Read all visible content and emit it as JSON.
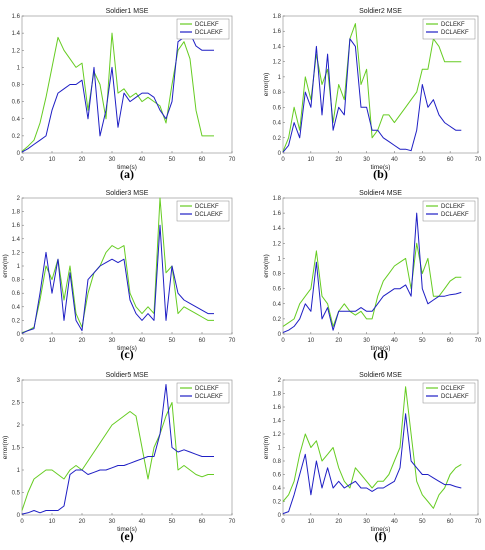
{
  "colors": {
    "series1": "#66cc22",
    "series2": "#1f1fc4",
    "axis": "#000000",
    "frame": "#999999"
  },
  "chart_data": [
    {
      "type": "line",
      "title": "Soldier1 MSE",
      "xlabel": "time(s)",
      "ylabel": "",
      "xlim": [
        0,
        70
      ],
      "ylim": [
        0,
        1.6
      ],
      "xticks": [
        "0",
        "10",
        "20",
        "30",
        "40",
        "50",
        "60",
        "70"
      ],
      "yticks": [
        "0",
        "0.2",
        "0.4",
        "0.6",
        "0.8",
        "1",
        "1.2",
        "1.4",
        "1.6"
      ],
      "legend": "top-right",
      "caption": "(a)",
      "series": [
        {
          "name": "DCLEKF",
          "x": [
            0,
            2,
            4,
            6,
            8,
            10,
            12,
            14,
            16,
            18,
            20,
            22,
            24,
            26,
            28,
            30,
            32,
            34,
            36,
            38,
            40,
            42,
            44,
            46,
            48,
            50,
            52,
            54,
            56,
            58,
            60,
            62,
            64
          ],
          "y": [
            0.02,
            0.08,
            0.15,
            0.35,
            0.65,
            1.0,
            1.35,
            1.2,
            1.1,
            1.0,
            1.05,
            0.5,
            0.95,
            0.8,
            0.4,
            1.4,
            0.7,
            0.75,
            0.65,
            0.7,
            0.6,
            0.65,
            0.6,
            0.55,
            0.35,
            0.8,
            1.2,
            1.3,
            1.1,
            0.5,
            0.2,
            0.2,
            0.2
          ]
        },
        {
          "name": "DCLAEKF",
          "x": [
            0,
            2,
            4,
            6,
            8,
            10,
            12,
            14,
            16,
            18,
            20,
            22,
            24,
            26,
            28,
            30,
            32,
            34,
            36,
            38,
            40,
            42,
            44,
            46,
            48,
            50,
            52,
            54,
            56,
            58,
            60,
            62,
            64
          ],
          "y": [
            0.01,
            0.05,
            0.1,
            0.15,
            0.2,
            0.5,
            0.7,
            0.75,
            0.8,
            0.8,
            0.85,
            0.4,
            1.0,
            0.2,
            0.5,
            1.0,
            0.3,
            0.7,
            0.6,
            0.65,
            0.7,
            0.7,
            0.65,
            0.5,
            0.4,
            0.6,
            1.3,
            1.35,
            1.4,
            1.25,
            1.2,
            1.2,
            1.2
          ]
        }
      ]
    },
    {
      "type": "line",
      "title": "Soldier2 MSE",
      "xlabel": "time(s)",
      "ylabel": "error(m)",
      "xlim": [
        0,
        70
      ],
      "ylim": [
        0,
        1.8
      ],
      "xticks": [
        "0",
        "10",
        "20",
        "30",
        "40",
        "50",
        "60",
        "70"
      ],
      "yticks": [
        "0",
        "0.2",
        "0.4",
        "0.6",
        "0.8",
        "1",
        "1.2",
        "1.4",
        "1.6",
        "1.8"
      ],
      "legend": "top-right",
      "caption": "(b)",
      "series": [
        {
          "name": "DCLEKF",
          "x": [
            0,
            2,
            4,
            6,
            8,
            10,
            12,
            14,
            16,
            18,
            20,
            22,
            24,
            26,
            28,
            30,
            32,
            34,
            36,
            38,
            40,
            42,
            44,
            46,
            48,
            50,
            52,
            54,
            56,
            58,
            60,
            62,
            64
          ],
          "y": [
            0.02,
            0.2,
            0.6,
            0.3,
            1.0,
            0.7,
            1.3,
            0.9,
            1.1,
            0.4,
            0.9,
            0.7,
            1.5,
            1.7,
            0.9,
            1.1,
            0.2,
            0.3,
            0.5,
            0.5,
            0.4,
            0.5,
            0.6,
            0.7,
            0.8,
            1.1,
            1.1,
            1.5,
            1.4,
            1.2,
            1.2,
            1.2,
            1.2
          ]
        },
        {
          "name": "DCLAEKF",
          "x": [
            0,
            2,
            4,
            6,
            8,
            10,
            12,
            14,
            16,
            18,
            20,
            22,
            24,
            26,
            28,
            30,
            32,
            34,
            36,
            38,
            40,
            42,
            44,
            46,
            48,
            50,
            52,
            54,
            56,
            58,
            60,
            62,
            64
          ],
          "y": [
            0.01,
            0.1,
            0.4,
            0.2,
            0.8,
            0.6,
            1.4,
            0.5,
            1.3,
            0.3,
            0.6,
            0.5,
            1.5,
            1.4,
            0.6,
            0.6,
            0.3,
            0.3,
            0.2,
            0.15,
            0.1,
            0.05,
            0.05,
            0.03,
            0.3,
            0.9,
            0.6,
            0.7,
            0.5,
            0.4,
            0.35,
            0.3,
            0.3
          ]
        }
      ]
    },
    {
      "type": "line",
      "title": "Soldier3 MSE",
      "xlabel": "time(s)",
      "ylabel": "error(m)",
      "xlim": [
        0,
        70
      ],
      "ylim": [
        0,
        2
      ],
      "xticks": [
        "0",
        "10",
        "20",
        "30",
        "40",
        "50",
        "60",
        "70"
      ],
      "yticks": [
        "0",
        "0.2",
        "0.4",
        "0.6",
        "0.8",
        "1",
        "1.2",
        "1.4",
        "1.6",
        "1.8",
        "2"
      ],
      "legend": "top-right",
      "caption": "(c)",
      "series": [
        {
          "name": "DCLEKF",
          "x": [
            0,
            2,
            4,
            6,
            8,
            10,
            12,
            14,
            16,
            18,
            20,
            22,
            24,
            26,
            28,
            30,
            32,
            34,
            36,
            38,
            40,
            42,
            44,
            46,
            48,
            50,
            52,
            54,
            56,
            58,
            60,
            62,
            64
          ],
          "y": [
            0.02,
            0.05,
            0.1,
            0.5,
            1.0,
            0.8,
            1.1,
            0.5,
            1.0,
            0.3,
            0.1,
            0.6,
            0.9,
            1.0,
            1.2,
            1.3,
            1.25,
            1.3,
            0.6,
            0.4,
            0.3,
            0.4,
            0.3,
            2.0,
            0.9,
            1.0,
            0.3,
            0.4,
            0.35,
            0.3,
            0.25,
            0.2,
            0.2
          ]
        },
        {
          "name": "DCLAEKF",
          "x": [
            0,
            2,
            4,
            6,
            8,
            10,
            12,
            14,
            16,
            18,
            20,
            22,
            24,
            26,
            28,
            30,
            32,
            34,
            36,
            38,
            40,
            42,
            44,
            46,
            48,
            50,
            52,
            54,
            56,
            58,
            60,
            62,
            64
          ],
          "y": [
            0.01,
            0.05,
            0.08,
            0.6,
            1.2,
            0.6,
            1.1,
            0.2,
            0.9,
            0.2,
            0.05,
            0.8,
            0.9,
            1.0,
            1.05,
            1.1,
            1.05,
            1.1,
            0.5,
            0.3,
            0.2,
            0.3,
            0.2,
            1.6,
            0.2,
            1.0,
            0.6,
            0.5,
            0.45,
            0.4,
            0.35,
            0.3,
            0.3
          ]
        }
      ]
    },
    {
      "type": "line",
      "title": "Soldier4 MSE",
      "xlabel": "time(s)",
      "ylabel": "error(m)",
      "xlim": [
        0,
        70
      ],
      "ylim": [
        0,
        1.8
      ],
      "xticks": [
        "0",
        "10",
        "20",
        "30",
        "40",
        "50",
        "60",
        "70"
      ],
      "yticks": [
        "0",
        "0.2",
        "0.4",
        "0.6",
        "0.8",
        "1",
        "1.2",
        "1.4",
        "1.6",
        "1.8"
      ],
      "legend": "top-right",
      "caption": "(d)",
      "series": [
        {
          "name": "DCLEKF",
          "x": [
            0,
            2,
            4,
            6,
            8,
            10,
            12,
            14,
            16,
            18,
            20,
            22,
            24,
            26,
            28,
            30,
            32,
            34,
            36,
            38,
            40,
            42,
            44,
            46,
            48,
            50,
            52,
            54,
            56,
            58,
            60,
            62,
            64
          ],
          "y": [
            0.1,
            0.15,
            0.2,
            0.4,
            0.5,
            0.6,
            1.1,
            0.5,
            0.4,
            0.1,
            0.3,
            0.4,
            0.3,
            0.25,
            0.3,
            0.2,
            0.2,
            0.5,
            0.7,
            0.8,
            0.9,
            0.95,
            1.0,
            0.6,
            1.2,
            0.8,
            1.0,
            0.5,
            0.5,
            0.6,
            0.7,
            0.75,
            0.75
          ]
        },
        {
          "name": "DCLAEKF",
          "x": [
            0,
            2,
            4,
            6,
            8,
            10,
            12,
            14,
            16,
            18,
            20,
            22,
            24,
            26,
            28,
            30,
            32,
            34,
            36,
            38,
            40,
            42,
            44,
            46,
            48,
            50,
            52,
            54,
            56,
            58,
            60,
            62,
            64
          ],
          "y": [
            0.02,
            0.05,
            0.1,
            0.2,
            0.4,
            0.3,
            0.95,
            0.2,
            0.35,
            0.05,
            0.3,
            0.3,
            0.3,
            0.3,
            0.35,
            0.3,
            0.3,
            0.4,
            0.5,
            0.55,
            0.6,
            0.6,
            0.65,
            0.5,
            1.6,
            0.6,
            0.4,
            0.45,
            0.5,
            0.5,
            0.52,
            0.53,
            0.55
          ]
        }
      ]
    },
    {
      "type": "line",
      "title": "Soldier5 MSE",
      "xlabel": "time(s)",
      "ylabel": "error(m)",
      "xlim": [
        0,
        70
      ],
      "ylim": [
        0,
        3
      ],
      "xticks": [
        "0",
        "10",
        "20",
        "30",
        "40",
        "50",
        "60",
        "70"
      ],
      "yticks": [
        "0",
        "0.5",
        "1",
        "1.5",
        "2",
        "2.5",
        "3"
      ],
      "legend": "top-right",
      "caption": "(e)",
      "series": [
        {
          "name": "DCLEKF",
          "x": [
            0,
            2,
            4,
            6,
            8,
            10,
            12,
            14,
            16,
            18,
            20,
            22,
            24,
            26,
            28,
            30,
            32,
            34,
            36,
            38,
            40,
            42,
            44,
            46,
            48,
            50,
            52,
            54,
            56,
            58,
            60,
            62,
            64
          ],
          "y": [
            0.1,
            0.5,
            0.8,
            0.9,
            1.0,
            1.0,
            0.9,
            0.8,
            1.0,
            1.1,
            1.0,
            1.2,
            1.4,
            1.6,
            1.8,
            2.0,
            2.1,
            2.2,
            2.3,
            2.2,
            1.5,
            0.8,
            1.5,
            1.8,
            2.2,
            2.5,
            1.0,
            1.1,
            1.0,
            0.9,
            0.85,
            0.9,
            0.9
          ]
        },
        {
          "name": "DCLAEKF",
          "x": [
            0,
            2,
            4,
            6,
            8,
            10,
            12,
            14,
            16,
            18,
            20,
            22,
            24,
            26,
            28,
            30,
            32,
            34,
            36,
            38,
            40,
            42,
            44,
            46,
            48,
            50,
            52,
            54,
            56,
            58,
            60,
            62,
            64
          ],
          "y": [
            0.02,
            0.05,
            0.1,
            0.05,
            0.1,
            0.1,
            0.1,
            0.2,
            0.9,
            1.0,
            1.0,
            0.9,
            0.95,
            1.0,
            1.0,
            1.05,
            1.1,
            1.1,
            1.15,
            1.2,
            1.25,
            1.3,
            1.3,
            1.8,
            2.9,
            1.5,
            1.4,
            1.45,
            1.4,
            1.35,
            1.3,
            1.3,
            1.3
          ]
        }
      ]
    },
    {
      "type": "line",
      "title": "Soldier6 MSE",
      "xlabel": "time(s)",
      "ylabel": "error(m)",
      "xlim": [
        0,
        70
      ],
      "ylim": [
        0,
        2
      ],
      "xticks": [
        "0",
        "10",
        "20",
        "30",
        "40",
        "50",
        "60",
        "70"
      ],
      "yticks": [
        "0",
        "0.2",
        "0.4",
        "0.6",
        "0.8",
        "1",
        "1.2",
        "1.4",
        "1.6",
        "1.8",
        "2"
      ],
      "legend": "top-right",
      "caption": "(f)",
      "series": [
        {
          "name": "DCLEKF",
          "x": [
            0,
            2,
            4,
            6,
            8,
            10,
            12,
            14,
            16,
            18,
            20,
            22,
            24,
            26,
            28,
            30,
            32,
            34,
            36,
            38,
            40,
            42,
            44,
            46,
            48,
            50,
            52,
            54,
            56,
            58,
            60,
            62,
            64
          ],
          "y": [
            0.2,
            0.3,
            0.5,
            0.9,
            1.2,
            1.0,
            1.1,
            0.8,
            0.9,
            1.0,
            0.7,
            0.5,
            0.4,
            0.7,
            0.6,
            0.5,
            0.4,
            0.5,
            0.5,
            0.6,
            0.8,
            1.0,
            1.9,
            1.2,
            0.5,
            0.3,
            0.2,
            0.1,
            0.3,
            0.4,
            0.6,
            0.7,
            0.75
          ]
        },
        {
          "name": "DCLAEKF",
          "x": [
            0,
            2,
            4,
            6,
            8,
            10,
            12,
            14,
            16,
            18,
            20,
            22,
            24,
            26,
            28,
            30,
            32,
            34,
            36,
            38,
            40,
            42,
            44,
            46,
            48,
            50,
            52,
            54,
            56,
            58,
            60,
            62,
            64
          ],
          "y": [
            0.02,
            0.05,
            0.3,
            0.6,
            0.9,
            0.3,
            0.8,
            0.4,
            0.7,
            0.4,
            0.5,
            0.4,
            0.45,
            0.5,
            0.4,
            0.4,
            0.35,
            0.4,
            0.4,
            0.45,
            0.5,
            0.7,
            1.5,
            0.8,
            0.7,
            0.6,
            0.6,
            0.55,
            0.5,
            0.45,
            0.45,
            0.42,
            0.4
          ]
        }
      ]
    }
  ]
}
